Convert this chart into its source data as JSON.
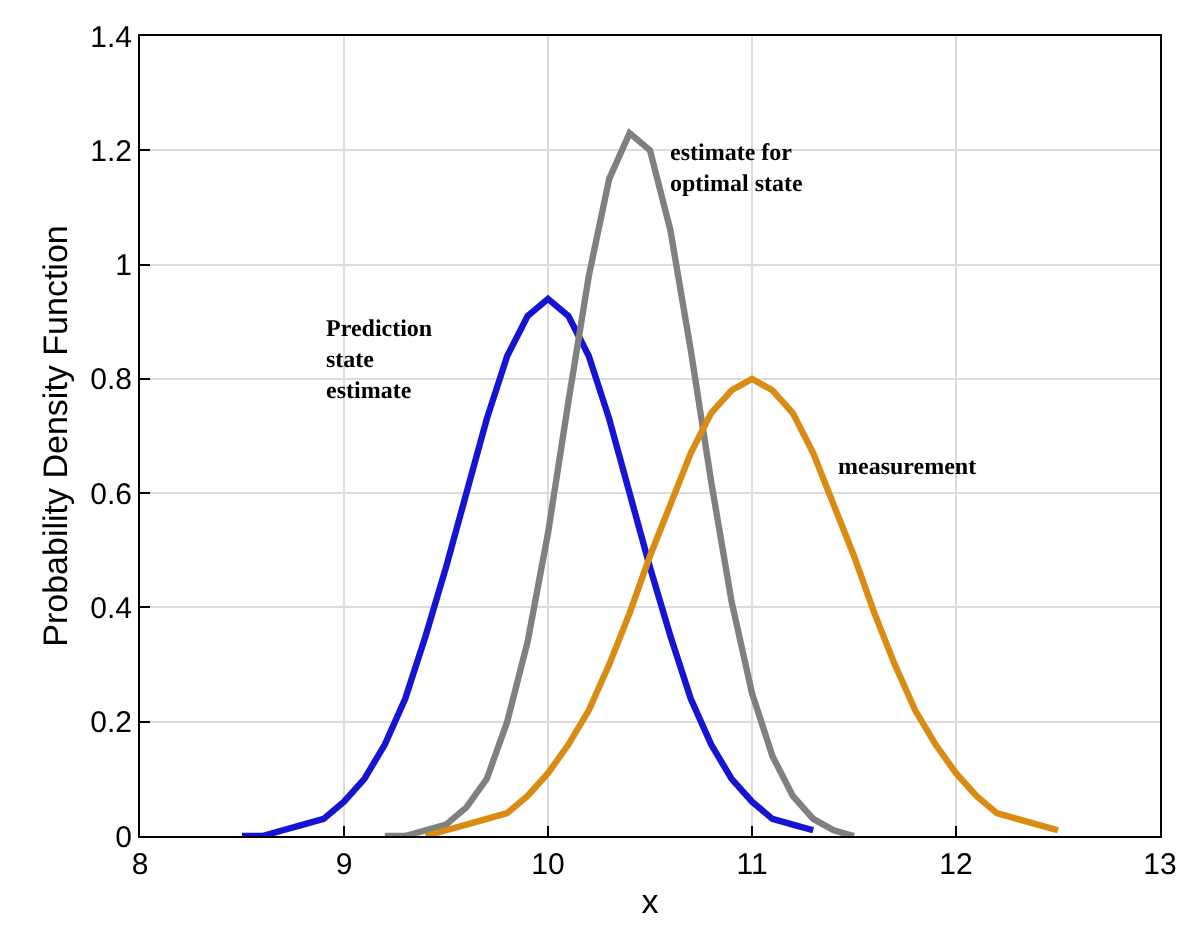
{
  "chart_data": {
    "type": "line",
    "xlabel": "x",
    "ylabel": "Probability Density Function",
    "series": [
      {
        "name": "Prediction\nstate\nestimate",
        "color": "#1414d2",
        "x": [
          8.5,
          8.6,
          8.7,
          8.8,
          8.9,
          9.0,
          9.1,
          9.2,
          9.3,
          9.4,
          9.5,
          9.6,
          9.7,
          9.8,
          9.9,
          10.0,
          10.1,
          10.2,
          10.3,
          10.4,
          10.5,
          10.6,
          10.7,
          10.8,
          10.9,
          11.0,
          11.1,
          11.2,
          11.3
        ],
        "values": [
          0.0,
          0.0,
          0.01,
          0.02,
          0.03,
          0.06,
          0.1,
          0.16,
          0.24,
          0.35,
          0.47,
          0.6,
          0.73,
          0.84,
          0.91,
          0.94,
          0.91,
          0.84,
          0.73,
          0.6,
          0.47,
          0.35,
          0.24,
          0.16,
          0.1,
          0.06,
          0.03,
          0.02,
          0.01
        ]
      },
      {
        "name": "estimate for\noptimal state",
        "color": "#808080",
        "x": [
          9.2,
          9.3,
          9.4,
          9.5,
          9.6,
          9.7,
          9.8,
          9.9,
          10.0,
          10.1,
          10.2,
          10.3,
          10.4,
          10.5,
          10.6,
          10.7,
          10.8,
          10.9,
          11.0,
          11.1,
          11.2,
          11.3,
          11.4,
          11.5
        ],
        "values": [
          0.0,
          0.0,
          0.01,
          0.02,
          0.05,
          0.1,
          0.2,
          0.34,
          0.53,
          0.76,
          0.98,
          1.15,
          1.23,
          1.2,
          1.06,
          0.85,
          0.62,
          0.41,
          0.25,
          0.14,
          0.07,
          0.03,
          0.01,
          0.0
        ]
      },
      {
        "name": "measurement",
        "color": "#d98c14",
        "x": [
          9.4,
          9.5,
          9.6,
          9.7,
          9.8,
          9.9,
          10.0,
          10.1,
          10.2,
          10.3,
          10.4,
          10.5,
          10.6,
          10.7,
          10.8,
          10.9,
          11.0,
          11.1,
          11.2,
          11.3,
          11.4,
          11.5,
          11.6,
          11.7,
          11.8,
          11.9,
          12.0,
          12.1,
          12.2,
          12.3,
          12.4,
          12.5
        ],
        "values": [
          0.0,
          0.01,
          0.02,
          0.03,
          0.04,
          0.07,
          0.11,
          0.16,
          0.22,
          0.3,
          0.39,
          0.49,
          0.58,
          0.67,
          0.74,
          0.78,
          0.8,
          0.78,
          0.74,
          0.67,
          0.58,
          0.49,
          0.39,
          0.3,
          0.22,
          0.16,
          0.11,
          0.07,
          0.04,
          0.03,
          0.02,
          0.01
        ]
      }
    ],
    "xlim": [
      8,
      13
    ],
    "xticks": [
      8,
      9,
      10,
      11,
      12,
      13
    ],
    "ylim": [
      0,
      1.4
    ],
    "yticks": [
      0,
      0.2,
      0.4,
      0.6,
      0.8,
      1,
      1.2,
      1.4
    ],
    "grid": true,
    "legend": false
  }
}
